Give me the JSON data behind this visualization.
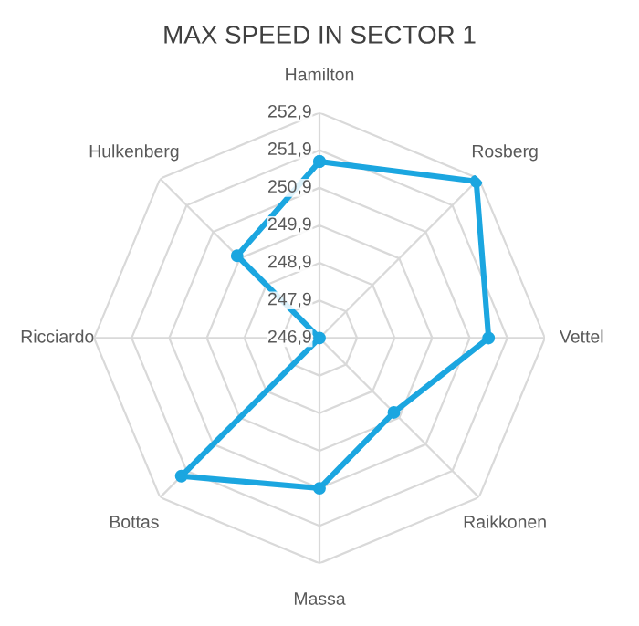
{
  "chart_data": {
    "type": "radar",
    "title": "MAX SPEED IN SECTOR 1",
    "categories": [
      "Hamilton",
      "Rosberg",
      "Vettel",
      "Raikkonen",
      "Massa",
      "Bottas",
      "Ricciardo",
      "Hulkenberg"
    ],
    "series": [
      {
        "color": "#1ba6e0",
        "values": [
          251.6,
          252.8,
          251.4,
          249.7,
          250.9,
          252.1,
          246.9,
          250.0
        ]
      }
    ],
    "ylim": [
      246.9,
      252.9
    ],
    "yticks": [
      {
        "value": 246.9,
        "label": "246,9"
      },
      {
        "value": 247.9,
        "label": "247,9"
      },
      {
        "value": 248.9,
        "label": "248,9"
      },
      {
        "value": 249.9,
        "label": "249,9"
      },
      {
        "value": 250.9,
        "label": "250,9"
      },
      {
        "value": 251.9,
        "label": "251,9"
      },
      {
        "value": 252.9,
        "label": "252,9"
      }
    ],
    "grid": true,
    "marker": "circle",
    "line_style": "solid"
  }
}
